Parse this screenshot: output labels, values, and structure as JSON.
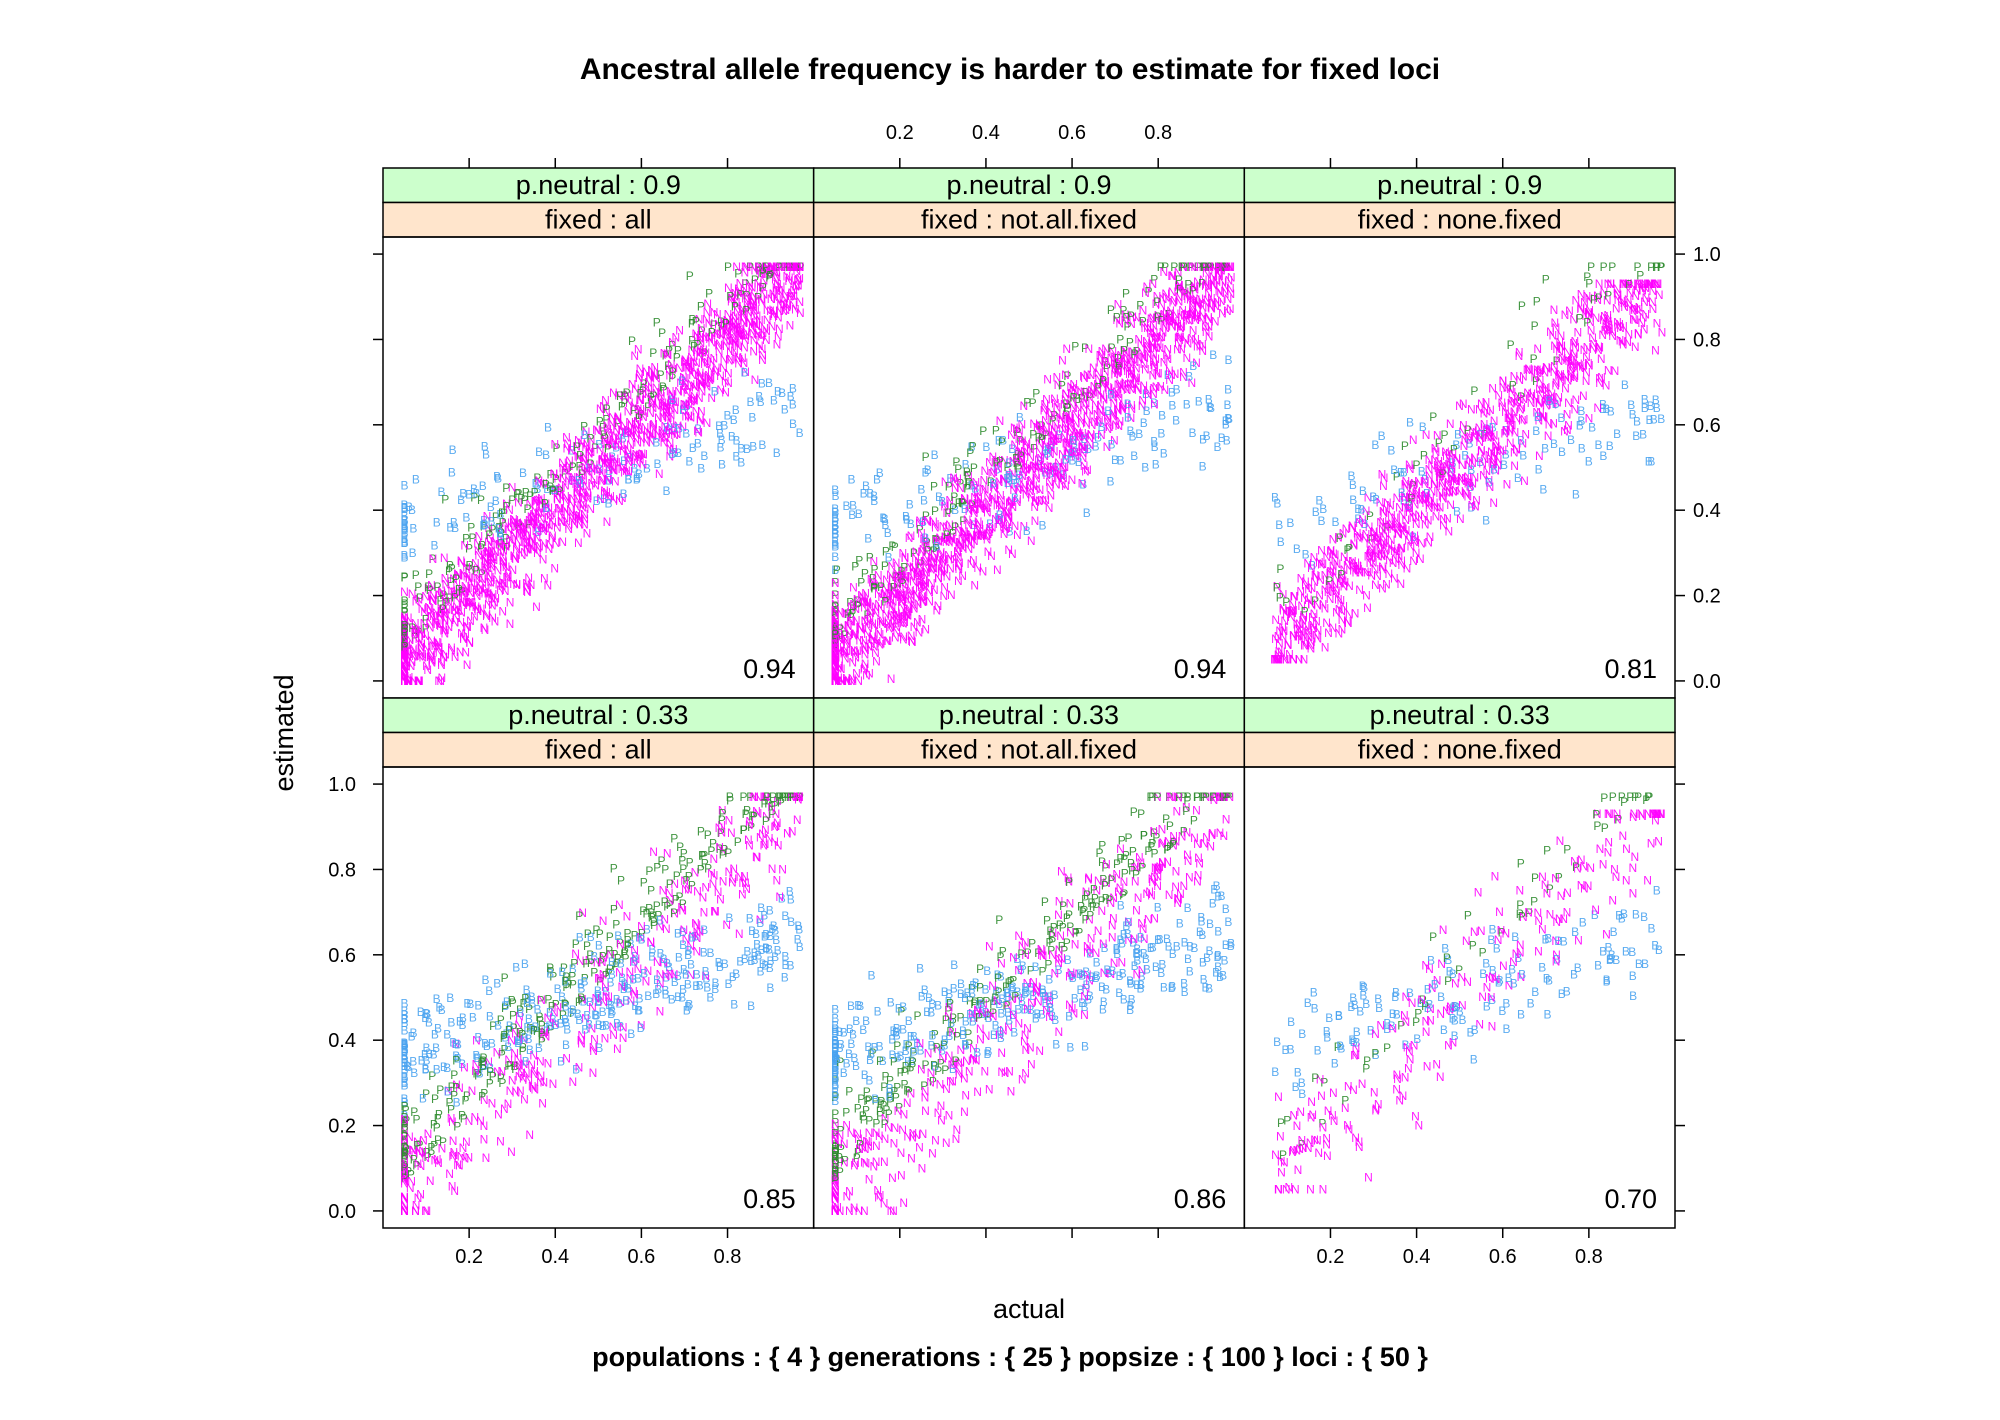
{
  "chart_data": {
    "type": "scatter",
    "title": "Ancestral allele frequency is harder to estimate for fixed loci",
    "subtitle": "populations : { 4 } generations : { 25 } popsize : { 100 } loci : { 50 }",
    "xlabel": "actual",
    "ylabel": "estimated",
    "xlim": [
      0.0,
      1.0
    ],
    "ylim": [
      -0.04,
      1.04
    ],
    "xticks": [
      "0.2",
      "0.4",
      "0.6",
      "0.8"
    ],
    "yticks": [
      "0.0",
      "0.2",
      "0.4",
      "0.6",
      "0.8",
      "1.0"
    ],
    "grid": false,
    "point_symbols": [
      {
        "symbol": "P",
        "color": "#2e8b2e"
      },
      {
        "symbol": "B",
        "color": "#4aa3f0"
      },
      {
        "symbol": "N",
        "color": "#ff00ff"
      }
    ],
    "panels": [
      {
        "p_neutral_strip": "p.neutral : 0.9",
        "fixed_strip": "fixed : all",
        "correlation": "0.94"
      },
      {
        "p_neutral_strip": "p.neutral : 0.9",
        "fixed_strip": "fixed : not.all.fixed",
        "correlation": "0.94"
      },
      {
        "p_neutral_strip": "p.neutral : 0.9",
        "fixed_strip": "fixed : none.fixed",
        "correlation": "0.81"
      },
      {
        "p_neutral_strip": "p.neutral : 0.33",
        "fixed_strip": "fixed : all",
        "correlation": "0.85"
      },
      {
        "p_neutral_strip": "p.neutral : 0.33",
        "fixed_strip": "fixed : not.all.fixed",
        "correlation": "0.86"
      },
      {
        "p_neutral_strip": "p.neutral : 0.33",
        "fixed_strip": "fixed : none.fixed",
        "correlation": "0.70"
      }
    ],
    "strip_colors": {
      "p_neutral": "#ccffcc",
      "fixed": "#ffe5cc"
    }
  }
}
